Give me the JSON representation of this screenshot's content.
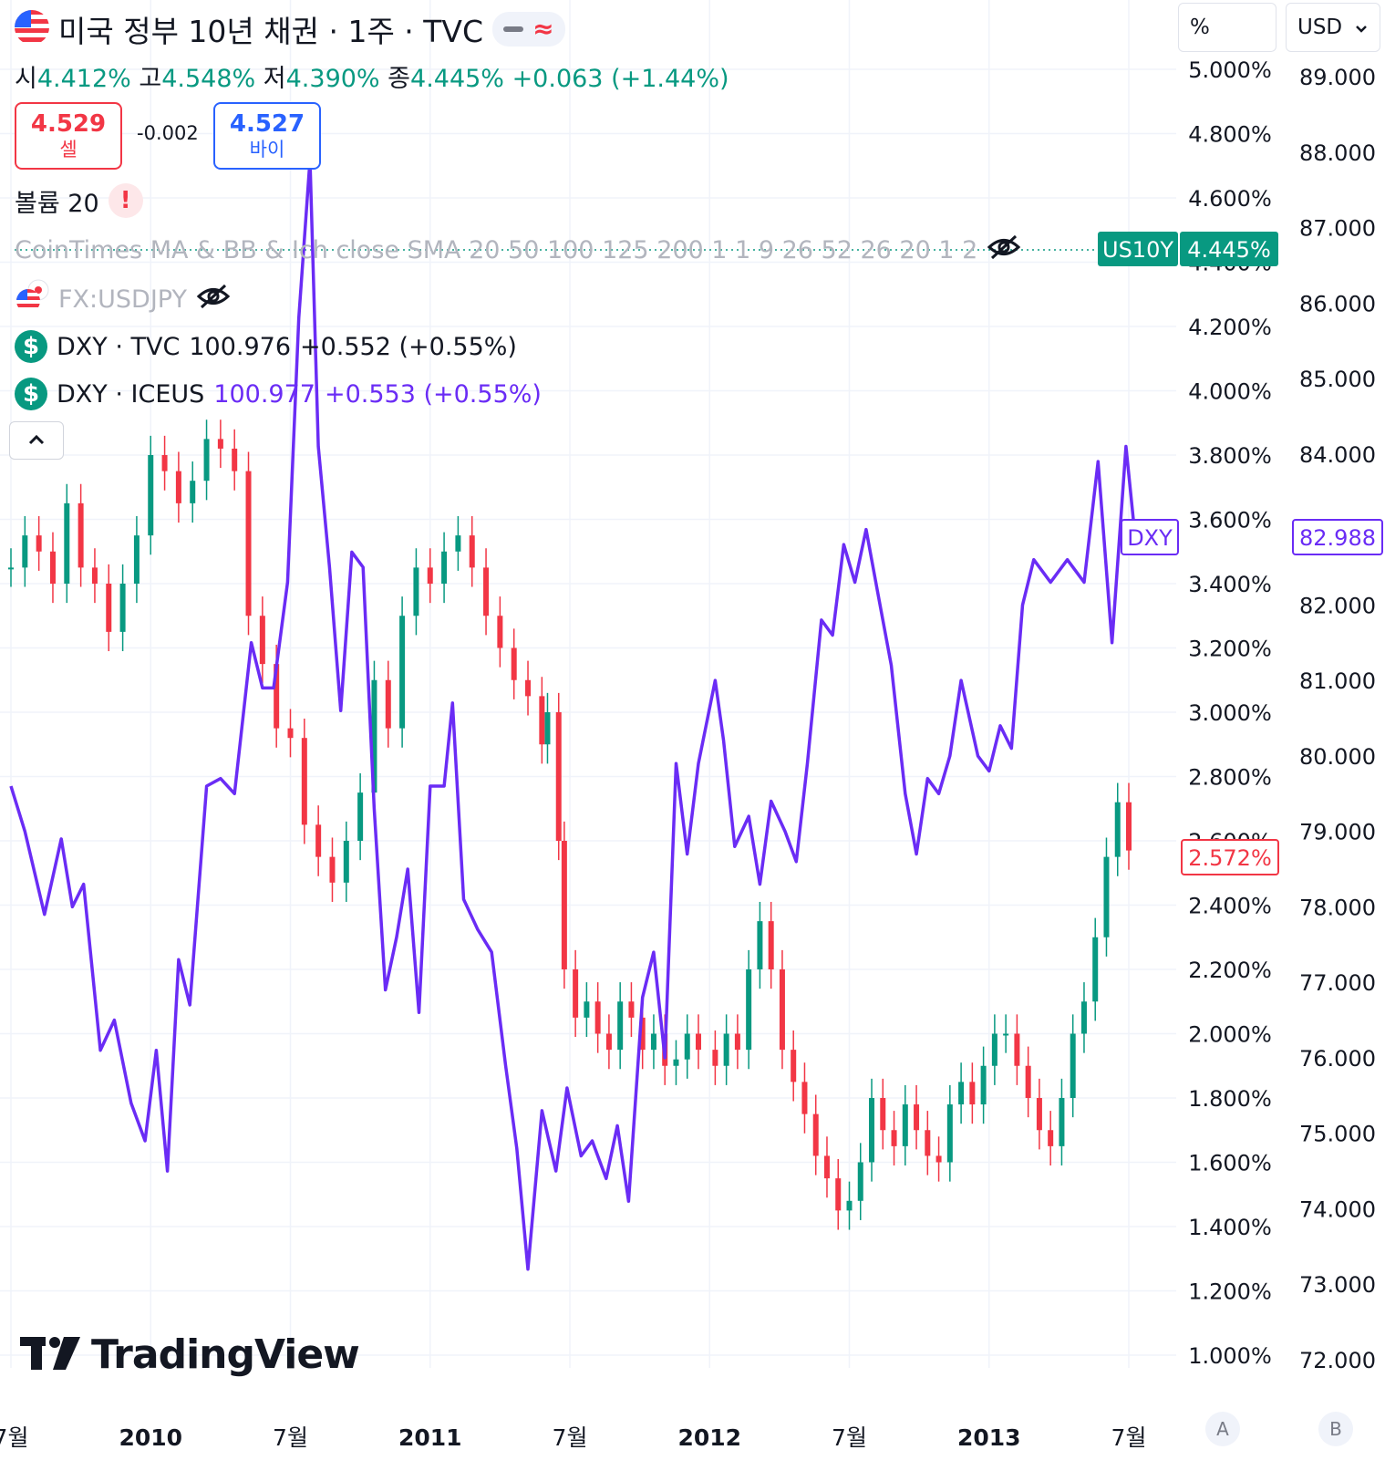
{
  "header": {
    "title": "미국 정부 10년 채권 · 1주 · TVC",
    "ohlc": {
      "open_label": "시",
      "open": "4.412%",
      "high_label": "고",
      "high": "4.548%",
      "low_label": "저",
      "low": "4.390%",
      "close_label": "종",
      "close": "4.445%",
      "change": "+0.063 (+1.44%)"
    },
    "sell": {
      "price": "4.529",
      "label": "셀"
    },
    "spread": "-0.002",
    "buy": {
      "price": "4.527",
      "label": "바이"
    }
  },
  "legend": {
    "volume": "볼륨 20",
    "indicator": "CoinTimes MA & BB & Ich close SMA 20 50 100 125 200 1 1 9 26 52 26 20 1 2",
    "usdjpy": "FX:USDJPY",
    "dxy_tvc": {
      "name": "DXY · TVC",
      "value": "100.976",
      "change": "+0.552 (+0.55%)"
    },
    "dxy_iceus": {
      "name": "DXY · ICEUS",
      "value": "100.977",
      "change": "+0.553 (+0.55%)"
    }
  },
  "axis_controls": {
    "percent": "%",
    "currency": "USD",
    "btn_a": "A",
    "btn_b": "B"
  },
  "badges": {
    "us10y_name": "US10Y",
    "us10y_value": "4.445%",
    "dxy_label": "DXY",
    "dxy_value": "82.988",
    "left_last": "2.572%"
  },
  "brand": "TradingView",
  "colors": {
    "up": "#089981",
    "down": "#f23645",
    "dxy_line": "#6a2cf5",
    "buy": "#2962ff",
    "grid": "#f0f3fa"
  },
  "chart_data": {
    "type": "line",
    "x_ticks": [
      "7월",
      "2010",
      "7월",
      "2011",
      "7월",
      "2012",
      "7월",
      "2013",
      "7월"
    ],
    "left_axis": {
      "ticks": [
        "5.000%",
        "4.800%",
        "4.600%",
        "4.400%",
        "4.200%",
        "4.000%",
        "3.800%",
        "3.600%",
        "3.400%",
        "3.200%",
        "3.000%",
        "2.800%",
        "2.600%",
        "2.400%",
        "2.200%",
        "2.000%",
        "1.800%",
        "1.600%",
        "1.400%",
        "1.200%",
        "1.000%"
      ],
      "range": [
        1.0,
        5.0
      ]
    },
    "right_axis": {
      "ticks": [
        "89.000",
        "88.000",
        "87.000",
        "86.000",
        "85.000",
        "84.000",
        "83.000",
        "82.000",
        "81.000",
        "80.000",
        "79.000",
        "78.000",
        "77.000",
        "76.000",
        "75.000",
        "74.000",
        "73.000",
        "72.000"
      ],
      "range": [
        72,
        89
      ]
    },
    "series": [
      {
        "name": "DXY",
        "axis": "right",
        "points": [
          [
            2009.5,
            79.6
          ],
          [
            2009.55,
            79.0
          ],
          [
            2009.62,
            77.9
          ],
          [
            2009.68,
            78.9
          ],
          [
            2009.72,
            78.0
          ],
          [
            2009.76,
            78.3
          ],
          [
            2009.82,
            76.1
          ],
          [
            2009.87,
            76.5
          ],
          [
            2009.93,
            75.4
          ],
          [
            2009.98,
            74.9
          ],
          [
            2010.02,
            76.1
          ],
          [
            2010.06,
            74.5
          ],
          [
            2010.1,
            77.3
          ],
          [
            2010.14,
            76.7
          ],
          [
            2010.2,
            79.6
          ],
          [
            2010.25,
            79.7
          ],
          [
            2010.3,
            79.5
          ],
          [
            2010.36,
            81.5
          ],
          [
            2010.4,
            80.9
          ],
          [
            2010.44,
            80.9
          ],
          [
            2010.49,
            82.3
          ],
          [
            2010.53,
            85.8
          ],
          [
            2010.57,
            87.9
          ],
          [
            2010.6,
            84.1
          ],
          [
            2010.64,
            82.5
          ],
          [
            2010.68,
            80.6
          ],
          [
            2010.72,
            82.7
          ],
          [
            2010.76,
            82.5
          ],
          [
            2010.8,
            79.3
          ],
          [
            2010.84,
            76.9
          ],
          [
            2010.88,
            77.6
          ],
          [
            2010.92,
            78.5
          ],
          [
            2010.96,
            76.6
          ],
          [
            2011.0,
            79.6
          ],
          [
            2011.05,
            79.6
          ],
          [
            2011.08,
            80.7
          ],
          [
            2011.12,
            78.1
          ],
          [
            2011.17,
            77.7
          ],
          [
            2011.22,
            77.4
          ],
          [
            2011.27,
            75.9
          ],
          [
            2011.31,
            74.8
          ],
          [
            2011.35,
            73.2
          ],
          [
            2011.4,
            75.3
          ],
          [
            2011.45,
            74.5
          ],
          [
            2011.49,
            75.6
          ],
          [
            2011.54,
            74.7
          ],
          [
            2011.58,
            74.9
          ],
          [
            2011.63,
            74.4
          ],
          [
            2011.67,
            75.1
          ],
          [
            2011.71,
            74.1
          ],
          [
            2011.76,
            76.8
          ],
          [
            2011.8,
            77.4
          ],
          [
            2011.84,
            76.0
          ],
          [
            2011.88,
            79.9
          ],
          [
            2011.92,
            78.7
          ],
          [
            2011.96,
            79.9
          ],
          [
            2012.02,
            81.0
          ],
          [
            2012.05,
            80.2
          ],
          [
            2012.09,
            78.8
          ],
          [
            2012.14,
            79.2
          ],
          [
            2012.18,
            78.3
          ],
          [
            2012.22,
            79.4
          ],
          [
            2012.27,
            79.0
          ],
          [
            2012.31,
            78.6
          ],
          [
            2012.35,
            79.9
          ],
          [
            2012.4,
            81.8
          ],
          [
            2012.44,
            81.6
          ],
          [
            2012.48,
            82.8
          ],
          [
            2012.52,
            82.3
          ],
          [
            2012.56,
            83.0
          ],
          [
            2012.6,
            82.2
          ],
          [
            2012.65,
            81.2
          ],
          [
            2012.7,
            79.5
          ],
          [
            2012.74,
            78.7
          ],
          [
            2012.78,
            79.7
          ],
          [
            2012.82,
            79.5
          ],
          [
            2012.86,
            80.0
          ],
          [
            2012.9,
            81.0
          ],
          [
            2012.96,
            80.0
          ],
          [
            2013.0,
            79.8
          ],
          [
            2013.04,
            80.4
          ],
          [
            2013.08,
            80.1
          ],
          [
            2013.12,
            82.0
          ],
          [
            2013.16,
            82.6
          ],
          [
            2013.22,
            82.3
          ],
          [
            2013.28,
            82.6
          ],
          [
            2013.34,
            82.3
          ],
          [
            2013.39,
            83.9
          ],
          [
            2013.44,
            81.5
          ],
          [
            2013.49,
            84.1
          ],
          [
            2013.52,
            83.0
          ]
        ]
      },
      {
        "name": "US10Y",
        "axis": "left",
        "points": [
          [
            2009.5,
            3.45
          ],
          [
            2009.55,
            3.55
          ],
          [
            2009.6,
            3.5
          ],
          [
            2009.65,
            3.4
          ],
          [
            2009.7,
            3.65
          ],
          [
            2009.75,
            3.45
          ],
          [
            2009.8,
            3.4
          ],
          [
            2009.85,
            3.25
          ],
          [
            2009.9,
            3.4
          ],
          [
            2009.95,
            3.55
          ],
          [
            2010.0,
            3.8
          ],
          [
            2010.05,
            3.75
          ],
          [
            2010.1,
            3.65
          ],
          [
            2010.15,
            3.72
          ],
          [
            2010.2,
            3.85
          ],
          [
            2010.25,
            3.82
          ],
          [
            2010.3,
            3.75
          ],
          [
            2010.35,
            3.3
          ],
          [
            2010.4,
            3.15
          ],
          [
            2010.45,
            2.95
          ],
          [
            2010.5,
            2.92
          ],
          [
            2010.55,
            2.65
          ],
          [
            2010.6,
            2.55
          ],
          [
            2010.65,
            2.47
          ],
          [
            2010.7,
            2.6
          ],
          [
            2010.75,
            2.75
          ],
          [
            2010.8,
            3.1
          ],
          [
            2010.85,
            2.95
          ],
          [
            2010.9,
            3.3
          ],
          [
            2010.95,
            3.45
          ],
          [
            2011.0,
            3.4
          ],
          [
            2011.05,
            3.5
          ],
          [
            2011.1,
            3.55
          ],
          [
            2011.15,
            3.45
          ],
          [
            2011.2,
            3.3
          ],
          [
            2011.25,
            3.2
          ],
          [
            2011.3,
            3.1
          ],
          [
            2011.35,
            3.05
          ],
          [
            2011.4,
            2.9
          ],
          [
            2011.42,
            3.0
          ],
          [
            2011.46,
            2.6
          ],
          [
            2011.48,
            2.2
          ],
          [
            2011.52,
            2.05
          ],
          [
            2011.56,
            2.1
          ],
          [
            2011.6,
            2.0
          ],
          [
            2011.64,
            1.95
          ],
          [
            2011.68,
            2.1
          ],
          [
            2011.72,
            2.05
          ],
          [
            2011.76,
            1.95
          ],
          [
            2011.8,
            2.0
          ],
          [
            2011.84,
            1.9
          ],
          [
            2011.88,
            1.92
          ],
          [
            2011.92,
            2.0
          ],
          [
            2011.96,
            1.95
          ],
          [
            2012.02,
            1.9
          ],
          [
            2012.06,
            2.0
          ],
          [
            2012.1,
            1.95
          ],
          [
            2012.14,
            2.2
          ],
          [
            2012.18,
            2.35
          ],
          [
            2012.22,
            2.2
          ],
          [
            2012.26,
            1.95
          ],
          [
            2012.3,
            1.85
          ],
          [
            2012.34,
            1.75
          ],
          [
            2012.38,
            1.62
          ],
          [
            2012.42,
            1.55
          ],
          [
            2012.46,
            1.45
          ],
          [
            2012.5,
            1.48
          ],
          [
            2012.54,
            1.6
          ],
          [
            2012.58,
            1.8
          ],
          [
            2012.62,
            1.7
          ],
          [
            2012.66,
            1.65
          ],
          [
            2012.7,
            1.78
          ],
          [
            2012.74,
            1.7
          ],
          [
            2012.78,
            1.62
          ],
          [
            2012.82,
            1.6
          ],
          [
            2012.86,
            1.78
          ],
          [
            2012.9,
            1.85
          ],
          [
            2012.94,
            1.78
          ],
          [
            2012.98,
            1.9
          ],
          [
            2013.02,
            2.0
          ],
          [
            2013.06,
            2.0
          ],
          [
            2013.1,
            1.9
          ],
          [
            2013.14,
            1.8
          ],
          [
            2013.18,
            1.7
          ],
          [
            2013.22,
            1.65
          ],
          [
            2013.26,
            1.8
          ],
          [
            2013.3,
            2.0
          ],
          [
            2013.34,
            2.1
          ],
          [
            2013.38,
            2.3
          ],
          [
            2013.42,
            2.55
          ],
          [
            2013.46,
            2.72
          ],
          [
            2013.5,
            2.57
          ]
        ]
      }
    ]
  }
}
